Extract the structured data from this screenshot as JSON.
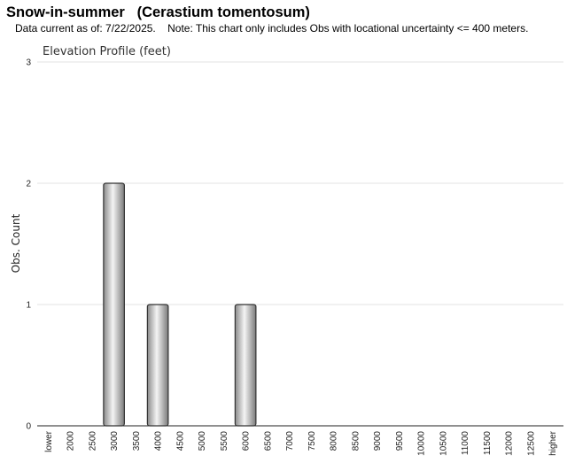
{
  "header": {
    "title": "Snow-in-summer   (Cerastium tomentosum)",
    "subtitle": "Data current as of: 7/22/2025.    Note: This chart only includes Obs with locational uncertainty <= 400 meters."
  },
  "chart_data": {
    "type": "bar",
    "title": "Elevation Profile (feet)",
    "xlabel": "",
    "ylabel": "Obs. Count",
    "categories": [
      "lower",
      "2000",
      "2500",
      "3000",
      "3500",
      "4000",
      "4500",
      "5000",
      "5500",
      "6000",
      "6500",
      "7000",
      "7500",
      "8000",
      "8500",
      "9000",
      "9500",
      "10000",
      "10500",
      "11000",
      "11500",
      "12000",
      "12500",
      "higher"
    ],
    "values": [
      0,
      0,
      0,
      2,
      0,
      1,
      0,
      0,
      0,
      1,
      0,
      0,
      0,
      0,
      0,
      0,
      0,
      0,
      0,
      0,
      0,
      0,
      0,
      0
    ],
    "ylim": [
      0,
      3
    ],
    "yticks": [
      0,
      1,
      2,
      3
    ],
    "grid": true,
    "legend": "none",
    "colors": {
      "bar_edge": "#333333",
      "bar_dark": "#8a8a8a",
      "bar_light": "#f4f4f4",
      "grid": "#e3e3e3"
    }
  }
}
